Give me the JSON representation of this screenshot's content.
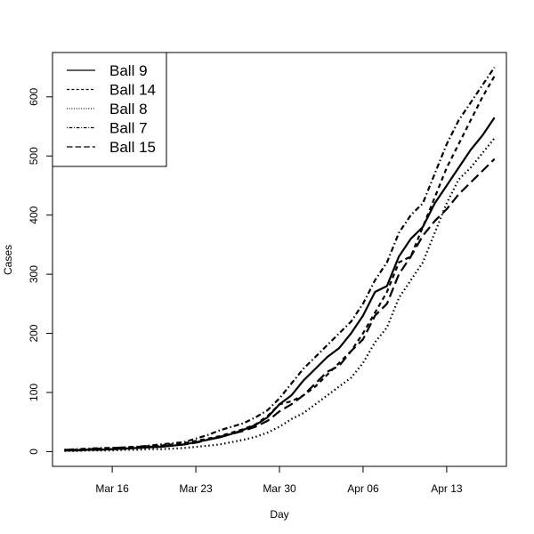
{
  "chart_data": {
    "type": "line",
    "title": "",
    "xlabel": "Day",
    "ylabel": "Cases",
    "xlim": [
      "2020-03-11",
      "2020-04-18"
    ],
    "ylim": [
      -25,
      675
    ],
    "grid": false,
    "legend_position": "top-left",
    "x_ticks": [
      {
        "date": "2020-03-16",
        "label": "Mar 16"
      },
      {
        "date": "2020-03-23",
        "label": "Mar 23"
      },
      {
        "date": "2020-03-30",
        "label": "Mar 30"
      },
      {
        "date": "2020-04-06",
        "label": "Apr 06"
      },
      {
        "date": "2020-04-13",
        "label": "Apr 13"
      }
    ],
    "y_ticks": [
      0,
      100,
      200,
      300,
      400,
      500,
      600
    ],
    "x": [
      "2020-03-12",
      "2020-03-13",
      "2020-03-14",
      "2020-03-15",
      "2020-03-16",
      "2020-03-17",
      "2020-03-18",
      "2020-03-19",
      "2020-03-20",
      "2020-03-21",
      "2020-03-22",
      "2020-03-23",
      "2020-03-24",
      "2020-03-25",
      "2020-03-26",
      "2020-03-27",
      "2020-03-28",
      "2020-03-29",
      "2020-03-30",
      "2020-03-31",
      "2020-04-01",
      "2020-04-02",
      "2020-04-03",
      "2020-04-04",
      "2020-04-05",
      "2020-04-06",
      "2020-04-07",
      "2020-04-08",
      "2020-04-09",
      "2020-04-10",
      "2020-04-11",
      "2020-04-12",
      "2020-04-13",
      "2020-04-14",
      "2020-04-15",
      "2020-04-16",
      "2020-04-17"
    ],
    "series": [
      {
        "name": "Ball 9",
        "dash": "solid",
        "values": [
          2,
          2,
          3,
          3,
          4,
          5,
          6,
          7,
          8,
          10,
          12,
          16,
          20,
          24,
          30,
          37,
          45,
          58,
          80,
          95,
          120,
          140,
          160,
          175,
          200,
          230,
          270,
          280,
          330,
          360,
          380,
          420,
          450,
          480,
          510,
          535,
          565
        ]
      },
      {
        "name": "Ball 14",
        "dash": "dashed",
        "values": [
          3,
          3,
          4,
          5,
          6,
          7,
          8,
          9,
          10,
          12,
          14,
          18,
          22,
          26,
          32,
          38,
          46,
          60,
          80,
          85,
          95,
          110,
          130,
          150,
          170,
          200,
          235,
          270,
          320,
          330,
          380,
          430,
          480,
          520,
          560,
          600,
          635
        ]
      },
      {
        "name": "Ball 8",
        "dash": "dotted",
        "values": [
          1,
          1,
          2,
          2,
          2,
          3,
          3,
          4,
          4,
          5,
          6,
          8,
          10,
          12,
          16,
          20,
          25,
          32,
          42,
          55,
          65,
          80,
          95,
          110,
          125,
          150,
          185,
          210,
          260,
          290,
          320,
          370,
          420,
          460,
          480,
          505,
          530
        ]
      },
      {
        "name": "Ball 7",
        "dash": "dotdash",
        "values": [
          3,
          4,
          5,
          6,
          6,
          7,
          8,
          10,
          12,
          14,
          16,
          22,
          28,
          36,
          42,
          48,
          58,
          70,
          90,
          115,
          140,
          160,
          180,
          200,
          220,
          250,
          290,
          320,
          370,
          400,
          420,
          470,
          520,
          560,
          590,
          620,
          650
        ]
      },
      {
        "name": "Ball 15",
        "dash": "longdash",
        "values": [
          2,
          3,
          3,
          4,
          4,
          5,
          6,
          8,
          9,
          10,
          12,
          15,
          20,
          25,
          30,
          35,
          42,
          52,
          68,
          80,
          95,
          115,
          135,
          145,
          170,
          190,
          230,
          250,
          300,
          330,
          365,
          390,
          410,
          435,
          455,
          475,
          495
        ]
      }
    ]
  }
}
